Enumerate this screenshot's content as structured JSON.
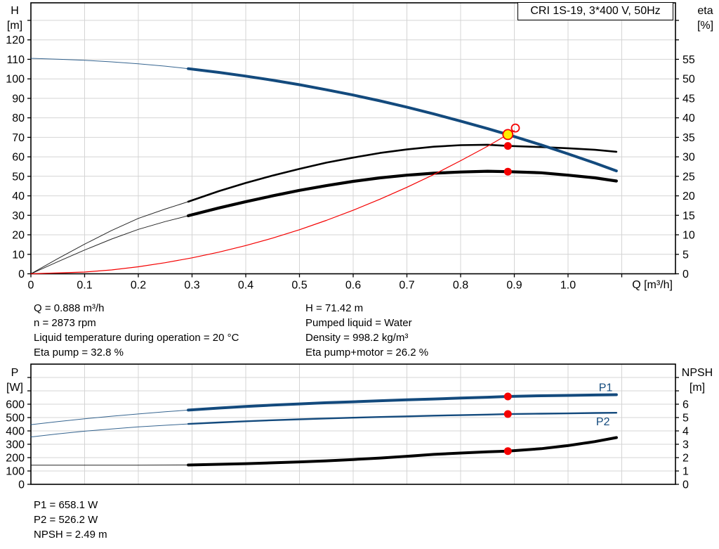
{
  "title_box": "CRI 1S-19, 3*400 V, 50Hz",
  "colors": {
    "blue": "#134a7d",
    "red": "#f40000",
    "yellow": "#ffed00",
    "black": "#000000",
    "grid": "#d4d4d4",
    "frame": "#000000"
  },
  "info_block": {
    "left": [
      "Q = 0.888 m³/h",
      "n = 2873 rpm",
      "Liquid temperature during operation = 20 °C",
      "Eta pump = 32.8 %"
    ],
    "right": [
      "H = 71.42 m",
      "Pumped liquid = Water",
      "Density = 998.2 kg/m³",
      "Eta pump+motor = 26.2 %"
    ]
  },
  "results_block": [
    "P1 = 658.1 W",
    "P2 = 526.2 W",
    "NPSH = 2.49 m"
  ],
  "chart_data": [
    {
      "type": "line",
      "id": "qh",
      "title": "CRI 1S-19, 3*400 V, 50Hz",
      "x_axis": {
        "label": "Q [m³/h]",
        "range": [
          0,
          1.2
        ],
        "show_ticks": true,
        "ticks": [
          {
            "v": 0,
            "t": "0"
          },
          {
            "v": 0.1,
            "t": "0.1"
          },
          {
            "v": 0.2,
            "t": "0.2"
          },
          {
            "v": 0.3,
            "t": "0.3"
          },
          {
            "v": 0.4,
            "t": "0.4"
          },
          {
            "v": 0.5,
            "t": "0.5"
          },
          {
            "v": 0.6,
            "t": "0.6"
          },
          {
            "v": 0.7,
            "t": "0.7"
          },
          {
            "v": 0.8,
            "t": "0.8"
          },
          {
            "v": 0.9,
            "t": "0.9"
          },
          {
            "v": 1.0,
            "t": "1.0"
          },
          {
            "v": 1.1,
            "t": ""
          }
        ]
      },
      "y_left": {
        "label": [
          "H",
          "[m]"
        ],
        "range": [
          0,
          139
        ],
        "ticks": [
          {
            "v": 0,
            "t": "0"
          },
          {
            "v": 10,
            "t": "10"
          },
          {
            "v": 20,
            "t": "20"
          },
          {
            "v": 30,
            "t": "30"
          },
          {
            "v": 40,
            "t": "40"
          },
          {
            "v": 50,
            "t": "50"
          },
          {
            "v": 60,
            "t": "60"
          },
          {
            "v": 70,
            "t": "70"
          },
          {
            "v": 80,
            "t": "80"
          },
          {
            "v": 90,
            "t": "90"
          },
          {
            "v": 100,
            "t": "100"
          },
          {
            "v": 110,
            "t": "110"
          },
          {
            "v": 120,
            "t": "120"
          },
          {
            "v": 130,
            "t": ""
          }
        ]
      },
      "y_right": {
        "label": [
          "eta",
          "[%]"
        ],
        "range": [
          0,
          69.5
        ],
        "ticks": [
          {
            "v": 0,
            "t": "0"
          },
          {
            "v": 5,
            "t": "5"
          },
          {
            "v": 10,
            "t": "10"
          },
          {
            "v": 15,
            "t": "15"
          },
          {
            "v": 20,
            "t": "20"
          },
          {
            "v": 25,
            "t": "25"
          },
          {
            "v": 30,
            "t": "30"
          },
          {
            "v": 35,
            "t": "35"
          },
          {
            "v": 40,
            "t": "40"
          },
          {
            "v": 45,
            "t": "45"
          },
          {
            "v": 50,
            "t": "50"
          },
          {
            "v": 55,
            "t": "55"
          },
          {
            "v": 60,
            "t": ""
          },
          {
            "v": 65,
            "t": ""
          }
        ]
      },
      "series": [
        {
          "name": "eta-pump",
          "axis": "right",
          "color": "black",
          "w_thin": 1,
          "w_thick": 2.6,
          "split": 0.293,
          "points": [
            [
              0,
              0
            ],
            [
              0.05,
              3.9
            ],
            [
              0.1,
              7.6
            ],
            [
              0.15,
              11.1
            ],
            [
              0.2,
              14.2
            ],
            [
              0.25,
              16.6
            ],
            [
              0.293,
              18.5
            ],
            [
              0.35,
              21.2
            ],
            [
              0.4,
              23.3
            ],
            [
              0.45,
              25.2
            ],
            [
              0.5,
              26.9
            ],
            [
              0.55,
              28.5
            ],
            [
              0.6,
              29.8
            ],
            [
              0.65,
              31.0
            ],
            [
              0.7,
              31.9
            ],
            [
              0.75,
              32.6
            ],
            [
              0.8,
              33.0
            ],
            [
              0.85,
              33.1
            ],
            [
              0.888,
              32.8
            ],
            [
              0.95,
              32.5
            ],
            [
              1.0,
              32.2
            ],
            [
              1.05,
              31.8
            ],
            [
              1.09,
              31.3
            ]
          ]
        },
        {
          "name": "eta-pump-motor",
          "axis": "right",
          "color": "black",
          "w_thin": 1,
          "w_thick": 4.2,
          "split": 0.293,
          "points": [
            [
              0,
              0
            ],
            [
              0.05,
              3.1
            ],
            [
              0.1,
              6.1
            ],
            [
              0.15,
              8.9
            ],
            [
              0.2,
              11.4
            ],
            [
              0.25,
              13.4
            ],
            [
              0.293,
              14.9
            ],
            [
              0.35,
              16.9
            ],
            [
              0.4,
              18.5
            ],
            [
              0.45,
              20.0
            ],
            [
              0.5,
              21.4
            ],
            [
              0.55,
              22.6
            ],
            [
              0.6,
              23.7
            ],
            [
              0.65,
              24.6
            ],
            [
              0.7,
              25.3
            ],
            [
              0.75,
              25.8
            ],
            [
              0.8,
              26.1
            ],
            [
              0.85,
              26.3
            ],
            [
              0.888,
              26.2
            ],
            [
              0.95,
              25.9
            ],
            [
              1.0,
              25.3
            ],
            [
              1.05,
              24.6
            ],
            [
              1.09,
              23.8
            ]
          ]
        },
        {
          "name": "system-curve",
          "axis": "left",
          "color": "red",
          "w_thin": 1.2,
          "w_thick": 1.2,
          "split": null,
          "points": [
            [
              0,
              0
            ],
            [
              0.1,
              0.9
            ],
            [
              0.15,
              2.0
            ],
            [
              0.2,
              3.6
            ],
            [
              0.25,
              5.7
            ],
            [
              0.3,
              8.2
            ],
            [
              0.35,
              11.1
            ],
            [
              0.4,
              14.5
            ],
            [
              0.45,
              18.3
            ],
            [
              0.5,
              22.6
            ],
            [
              0.55,
              27.4
            ],
            [
              0.6,
              32.6
            ],
            [
              0.65,
              38.3
            ],
            [
              0.7,
              44.4
            ],
            [
              0.75,
              50.9
            ],
            [
              0.8,
              58.0
            ],
            [
              0.85,
              65.4
            ],
            [
              0.9,
              73.4
            ]
          ]
        },
        {
          "name": "H-curve",
          "axis": "left",
          "color": "blue",
          "w_thin": 1,
          "w_thick": 4,
          "split": 0.293,
          "points": [
            [
              0,
              110.5
            ],
            [
              0.05,
              110.1
            ],
            [
              0.1,
              109.5
            ],
            [
              0.15,
              108.7
            ],
            [
              0.2,
              107.7
            ],
            [
              0.25,
              106.5
            ],
            [
              0.293,
              105.2
            ],
            [
              0.35,
              103.3
            ],
            [
              0.4,
              101.4
            ],
            [
              0.45,
              99.3
            ],
            [
              0.5,
              97.0
            ],
            [
              0.55,
              94.4
            ],
            [
              0.6,
              91.7
            ],
            [
              0.65,
              88.7
            ],
            [
              0.7,
              85.5
            ],
            [
              0.75,
              82.0
            ],
            [
              0.8,
              78.3
            ],
            [
              0.85,
              74.5
            ],
            [
              0.888,
              71.42
            ],
            [
              0.95,
              66.1
            ],
            [
              1.0,
              61.5
            ],
            [
              1.05,
              56.8
            ],
            [
              1.09,
              52.8
            ]
          ]
        }
      ],
      "markers": [
        {
          "name": "eta-pump-point",
          "q": 0.888,
          "v": 32.8,
          "axis": "right",
          "style": "dot"
        },
        {
          "name": "eta-pump-motor-point",
          "q": 0.888,
          "v": 26.2,
          "axis": "right",
          "style": "dot"
        },
        {
          "name": "duty-point",
          "q": 0.888,
          "v": 71.42,
          "axis": "left",
          "style": "operating"
        },
        {
          "name": "target-point",
          "q": 0.902,
          "v": 74.8,
          "axis": "left",
          "style": "open"
        }
      ],
      "annotations": []
    },
    {
      "type": "line",
      "id": "power-npsh",
      "title": "",
      "x_axis": {
        "label": "",
        "range": [
          0,
          1.2
        ],
        "show_ticks": false,
        "ticks": [
          {
            "v": 0.1,
            "t": ""
          },
          {
            "v": 0.2,
            "t": ""
          },
          {
            "v": 0.3,
            "t": ""
          },
          {
            "v": 0.4,
            "t": ""
          },
          {
            "v": 0.5,
            "t": ""
          },
          {
            "v": 0.6,
            "t": ""
          },
          {
            "v": 0.7,
            "t": ""
          },
          {
            "v": 0.8,
            "t": ""
          },
          {
            "v": 0.9,
            "t": ""
          },
          {
            "v": 1.0,
            "t": ""
          },
          {
            "v": 1.1,
            "t": ""
          }
        ]
      },
      "y_left": {
        "label": [
          "P",
          "[W]"
        ],
        "range": [
          0,
          900
        ],
        "ticks": [
          {
            "v": 0,
            "t": "0"
          },
          {
            "v": 100,
            "t": "100"
          },
          {
            "v": 200,
            "t": "200"
          },
          {
            "v": 300,
            "t": "300"
          },
          {
            "v": 400,
            "t": "400"
          },
          {
            "v": 500,
            "t": "500"
          },
          {
            "v": 600,
            "t": "600"
          },
          {
            "v": 700,
            "t": ""
          },
          {
            "v": 800,
            "t": ""
          }
        ]
      },
      "y_right": {
        "label": [
          "NPSH",
          "[m]"
        ],
        "range": [
          0,
          9
        ],
        "ticks": [
          {
            "v": 0,
            "t": "0"
          },
          {
            "v": 1,
            "t": "1"
          },
          {
            "v": 2,
            "t": "2"
          },
          {
            "v": 3,
            "t": "3"
          },
          {
            "v": 4,
            "t": "4"
          },
          {
            "v": 5,
            "t": "5"
          },
          {
            "v": 6,
            "t": "6"
          },
          {
            "v": 7,
            "t": ""
          },
          {
            "v": 8,
            "t": ""
          }
        ]
      },
      "series": [
        {
          "name": "P1",
          "axis": "left",
          "color": "blue",
          "w_thin": 1,
          "w_thick": 4,
          "split": 0.293,
          "points": [
            [
              0,
              447
            ],
            [
              0.05,
              470
            ],
            [
              0.1,
              491
            ],
            [
              0.15,
              510
            ],
            [
              0.2,
              527
            ],
            [
              0.25,
              543
            ],
            [
              0.293,
              556
            ],
            [
              0.35,
              571
            ],
            [
              0.4,
              583
            ],
            [
              0.45,
              593
            ],
            [
              0.5,
              602
            ],
            [
              0.55,
              611
            ],
            [
              0.6,
              618
            ],
            [
              0.65,
              626
            ],
            [
              0.7,
              633
            ],
            [
              0.75,
              639
            ],
            [
              0.8,
              646
            ],
            [
              0.85,
              652
            ],
            [
              0.888,
              658
            ],
            [
              0.95,
              663
            ],
            [
              1.0,
              666
            ],
            [
              1.05,
              669
            ],
            [
              1.09,
              671
            ]
          ]
        },
        {
          "name": "P2",
          "axis": "left",
          "color": "blue",
          "w_thin": 1,
          "w_thick": 2.4,
          "split": 0.293,
          "points": [
            [
              0,
              355
            ],
            [
              0.05,
              378
            ],
            [
              0.1,
              398
            ],
            [
              0.15,
              415
            ],
            [
              0.2,
              430
            ],
            [
              0.25,
              442
            ],
            [
              0.293,
              452
            ],
            [
              0.35,
              463
            ],
            [
              0.4,
              472
            ],
            [
              0.45,
              480
            ],
            [
              0.5,
              487
            ],
            [
              0.55,
              493
            ],
            [
              0.6,
              499
            ],
            [
              0.65,
              504
            ],
            [
              0.7,
              509
            ],
            [
              0.75,
              514
            ],
            [
              0.8,
              518
            ],
            [
              0.85,
              522
            ],
            [
              0.888,
              526
            ],
            [
              0.95,
              529
            ],
            [
              1.0,
              531
            ],
            [
              1.05,
              534
            ],
            [
              1.09,
              536
            ]
          ]
        },
        {
          "name": "NPSH",
          "axis": "right",
          "color": "black",
          "w_thin": 1,
          "w_thick": 4,
          "split": 0.293,
          "points": [
            [
              0,
              1.43
            ],
            [
              0.1,
              1.43
            ],
            [
              0.2,
              1.43
            ],
            [
              0.293,
              1.45
            ],
            [
              0.35,
              1.5
            ],
            [
              0.4,
              1.55
            ],
            [
              0.45,
              1.61
            ],
            [
              0.5,
              1.68
            ],
            [
              0.55,
              1.76
            ],
            [
              0.6,
              1.86
            ],
            [
              0.65,
              1.97
            ],
            [
              0.7,
              2.1
            ],
            [
              0.75,
              2.24
            ],
            [
              0.8,
              2.34
            ],
            [
              0.85,
              2.43
            ],
            [
              0.888,
              2.49
            ],
            [
              0.95,
              2.67
            ],
            [
              1.0,
              2.9
            ],
            [
              1.05,
              3.2
            ],
            [
              1.09,
              3.5
            ]
          ]
        }
      ],
      "markers": [
        {
          "name": "p1-point",
          "q": 0.888,
          "v": 658.1,
          "axis": "left",
          "style": "dot"
        },
        {
          "name": "p2-point",
          "q": 0.888,
          "v": 526.2,
          "axis": "left",
          "style": "dot"
        },
        {
          "name": "npsh-point",
          "q": 0.888,
          "v": 2.49,
          "axis": "right",
          "style": "dot"
        }
      ],
      "annotations": [
        {
          "text": "P1",
          "q": 1.07,
          "v": 725,
          "axis": "left",
          "color": "blue"
        },
        {
          "text": "P2",
          "q": 1.065,
          "v": 468,
          "axis": "left",
          "color": "blue"
        }
      ]
    }
  ]
}
